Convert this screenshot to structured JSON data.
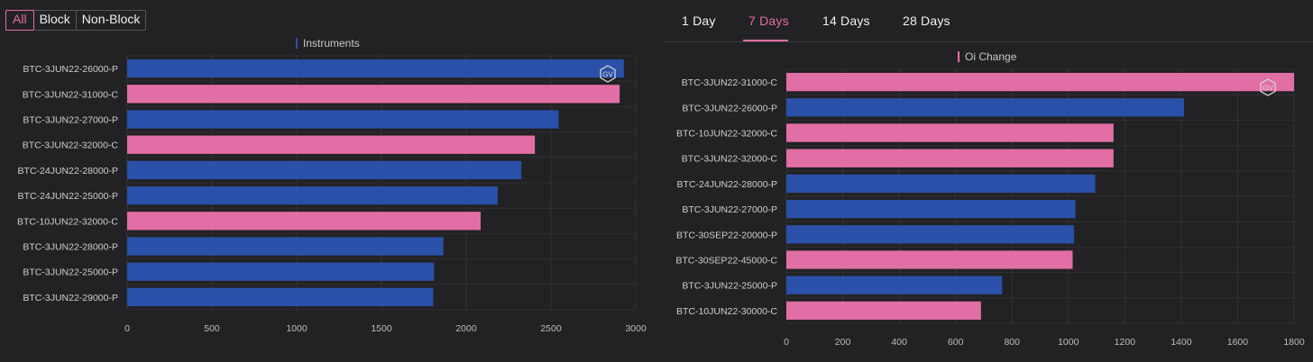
{
  "filters": {
    "options": [
      "All",
      "Block",
      "Non-Block"
    ],
    "active": "All"
  },
  "tabs": {
    "items": [
      "1 Day",
      "7 Days",
      "14 Days",
      "28 Days"
    ],
    "active": "7 Days"
  },
  "colors": {
    "put": "#2b50a9",
    "call": "#e26ea6",
    "accent": "#e46da4",
    "background": "#222224"
  },
  "watermark": "GV",
  "chart_data": [
    {
      "type": "bar",
      "orientation": "horizontal",
      "legend": "Instruments",
      "legend_position": "top-center",
      "categories": [
        "BTC-3JUN22-26000-P",
        "BTC-3JUN22-31000-C",
        "BTC-3JUN22-27000-P",
        "BTC-3JUN22-32000-C",
        "BTC-24JUN22-28000-P",
        "BTC-24JUN22-25000-P",
        "BTC-10JUN22-32000-C",
        "BTC-3JUN22-28000-P",
        "BTC-3JUN22-25000-P",
        "BTC-3JUN22-29000-P"
      ],
      "values": [
        2930,
        2905,
        2545,
        2405,
        2325,
        2185,
        2085,
        1865,
        1810,
        1805
      ],
      "xlim": [
        0,
        3000
      ],
      "ticks": [
        0,
        500,
        1000,
        1500,
        2000,
        2500,
        3000
      ],
      "grid": true
    },
    {
      "type": "bar",
      "orientation": "horizontal",
      "legend": "Oi Change",
      "legend_position": "top-center",
      "categories": [
        "BTC-3JUN22-31000-C",
        "BTC-3JUN22-26000-P",
        "BTC-10JUN22-32000-C",
        "BTC-3JUN22-32000-C",
        "BTC-24JUN22-28000-P",
        "BTC-3JUN22-27000-P",
        "BTC-30SEP22-20000-P",
        "BTC-30SEP22-45000-C",
        "BTC-3JUN22-25000-P",
        "BTC-10JUN22-30000-C"
      ],
      "values": [
        1800,
        1410,
        1160,
        1160,
        1095,
        1025,
        1020,
        1015,
        765,
        690
      ],
      "xlim": [
        0,
        1800
      ],
      "ticks": [
        0,
        200,
        400,
        600,
        800,
        1000,
        1200,
        1400,
        1600,
        1800
      ],
      "grid": true
    }
  ]
}
